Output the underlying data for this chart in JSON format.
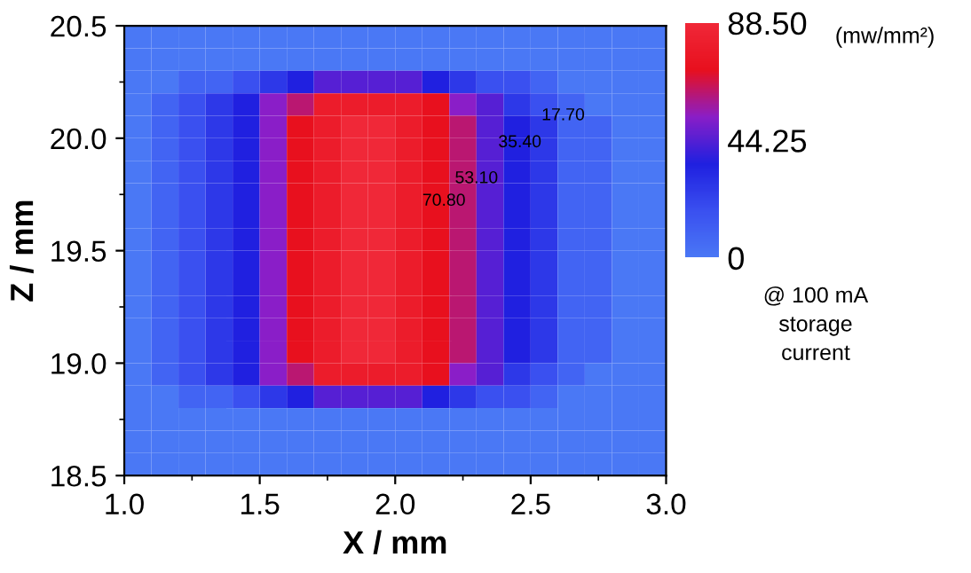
{
  "chart_data": {
    "type": "heatmap",
    "xlabel": "X / mm",
    "ylabel": "Z / mm",
    "clabel": "(mw/mm²)",
    "xlim": [
      1.0,
      3.0
    ],
    "ylim": [
      18.5,
      20.5
    ],
    "xticks": [
      {
        "value": 1.0,
        "label": "1.0"
      },
      1.5,
      {
        "value": 2.0,
        "label": "2.0"
      },
      2.5,
      {
        "value": 3.0,
        "label": "3.0"
      }
    ],
    "yticks": [
      18.5,
      {
        "value": 19.0,
        "label": "19.0"
      },
      19.5,
      {
        "value": 20.0,
        "label": "20.0"
      },
      20.5
    ],
    "clim": [
      0,
      88.5
    ],
    "cticks": [
      0,
      44.25,
      {
        "value": 88.5,
        "label": "88.50"
      }
    ],
    "colors": [
      "#4a78f5",
      "#3a50f0",
      "#2020e0",
      "#8a1ec8",
      "#e8101e",
      "#f02838"
    ],
    "cells": [
      [
        0,
        0,
        0,
        0,
        0,
        0,
        0,
        0,
        0,
        0,
        0,
        0,
        0,
        0,
        0,
        0,
        0,
        0,
        0,
        0
      ],
      [
        0,
        0,
        0,
        0,
        0,
        0,
        0,
        0,
        0,
        0,
        0,
        0,
        0,
        0,
        0,
        0,
        0,
        0,
        0,
        0
      ],
      [
        0,
        0,
        8.85,
        8.85,
        17.7,
        26.55,
        35.4,
        44.25,
        44.25,
        44.25,
        44.25,
        35.4,
        26.55,
        17.7,
        17.7,
        8.85,
        0,
        0,
        0,
        0
      ],
      [
        0,
        8.85,
        17.7,
        26.55,
        35.4,
        53.1,
        61.95,
        79.65,
        79.65,
        79.65,
        79.65,
        70.8,
        53.1,
        44.25,
        26.55,
        17.7,
        8.85,
        0,
        0,
        0
      ],
      [
        0,
        8.85,
        17.7,
        26.55,
        35.4,
        53.1,
        70.8,
        79.65,
        88.5,
        88.5,
        79.65,
        70.8,
        61.95,
        44.25,
        35.4,
        26.55,
        8.85,
        8.85,
        0,
        0
      ],
      [
        0,
        8.85,
        17.7,
        26.55,
        35.4,
        53.1,
        70.8,
        79.65,
        88.5,
        88.5,
        79.65,
        70.8,
        61.95,
        44.25,
        35.4,
        26.55,
        8.85,
        8.85,
        0,
        0
      ],
      [
        0,
        8.85,
        17.7,
        26.55,
        35.4,
        53.1,
        70.8,
        79.65,
        88.5,
        88.5,
        79.65,
        70.8,
        61.95,
        44.25,
        35.4,
        26.55,
        8.85,
        8.85,
        0,
        0
      ],
      [
        0,
        8.85,
        17.7,
        26.55,
        35.4,
        53.1,
        70.8,
        79.65,
        88.5,
        88.5,
        79.65,
        70.8,
        61.95,
        44.25,
        35.4,
        26.55,
        8.85,
        8.85,
        0,
        0
      ],
      [
        0,
        8.85,
        17.7,
        26.55,
        35.4,
        53.1,
        70.8,
        79.65,
        88.5,
        88.5,
        79.65,
        70.8,
        61.95,
        44.25,
        35.4,
        26.55,
        8.85,
        8.85,
        0,
        0
      ],
      [
        0,
        8.85,
        17.7,
        26.55,
        35.4,
        53.1,
        70.8,
        79.65,
        88.5,
        88.5,
        79.65,
        70.8,
        61.95,
        44.25,
        35.4,
        26.55,
        8.85,
        8.85,
        0,
        0
      ],
      [
        0,
        8.85,
        17.7,
        26.55,
        35.4,
        53.1,
        70.8,
        79.65,
        88.5,
        88.5,
        79.65,
        70.8,
        61.95,
        44.25,
        35.4,
        26.55,
        8.85,
        8.85,
        0,
        0
      ],
      [
        0,
        8.85,
        17.7,
        26.55,
        35.4,
        53.1,
        70.8,
        79.65,
        88.5,
        88.5,
        79.65,
        70.8,
        61.95,
        44.25,
        35.4,
        26.55,
        8.85,
        8.85,
        0,
        0
      ],
      [
        0,
        8.85,
        17.7,
        26.55,
        35.4,
        53.1,
        70.8,
        79.65,
        88.5,
        88.5,
        79.65,
        70.8,
        61.95,
        44.25,
        35.4,
        26.55,
        8.85,
        8.85,
        0,
        0
      ],
      [
        0,
        8.85,
        17.7,
        26.55,
        35.4,
        53.1,
        70.8,
        79.65,
        88.5,
        88.5,
        79.65,
        70.8,
        61.95,
        44.25,
        35.4,
        26.55,
        8.85,
        8.85,
        0,
        0
      ],
      [
        0,
        8.85,
        17.7,
        26.55,
        35.4,
        53.1,
        70.8,
        79.65,
        88.5,
        88.5,
        79.65,
        70.8,
        61.95,
        44.25,
        35.4,
        26.55,
        8.85,
        8.85,
        0,
        0
      ],
      [
        0,
        8.85,
        17.7,
        26.55,
        35.4,
        53.1,
        61.95,
        79.65,
        79.65,
        79.65,
        79.65,
        70.8,
        53.1,
        44.25,
        26.55,
        17.7,
        8.85,
        0,
        0,
        0
      ],
      [
        0,
        0,
        8.85,
        8.85,
        17.7,
        26.55,
        35.4,
        44.25,
        44.25,
        44.25,
        44.25,
        35.4,
        26.55,
        17.7,
        17.7,
        8.85,
        0,
        0,
        0,
        0
      ],
      [
        0,
        0,
        0,
        0,
        0,
        0,
        0,
        0,
        0,
        0,
        0,
        0,
        0,
        0,
        0,
        0,
        0,
        0,
        0,
        0
      ],
      [
        0,
        0,
        0,
        0,
        0,
        0,
        0,
        0,
        0,
        0,
        0,
        0,
        0,
        0,
        0,
        0,
        0,
        0,
        0,
        0
      ],
      [
        0,
        0,
        0,
        0,
        0,
        0,
        0,
        0,
        0,
        0,
        0,
        0,
        0,
        0,
        0,
        0,
        0,
        0,
        0,
        0
      ]
    ],
    "annotations": [
      "17.70",
      "35.40",
      "53.10",
      "70.80",
      "@ 100 mA\nstorage\ncurrent"
    ]
  }
}
